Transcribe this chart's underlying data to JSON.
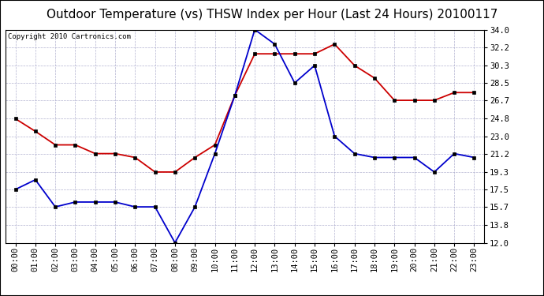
{
  "title": "Outdoor Temperature (vs) THSW Index per Hour (Last 24 Hours) 20100117",
  "copyright": "Copyright 2010 Cartronics.com",
  "hours": [
    "00:00",
    "01:00",
    "02:00",
    "03:00",
    "04:00",
    "05:00",
    "06:00",
    "07:00",
    "08:00",
    "09:00",
    "10:00",
    "11:00",
    "12:00",
    "13:00",
    "14:00",
    "15:00",
    "16:00",
    "17:00",
    "18:00",
    "19:00",
    "20:00",
    "21:00",
    "22:00",
    "23:00"
  ],
  "temp_blue": [
    17.5,
    18.5,
    15.7,
    16.2,
    16.2,
    16.2,
    15.7,
    15.7,
    12.0,
    15.7,
    21.2,
    27.2,
    34.0,
    32.5,
    28.5,
    30.3,
    23.0,
    21.2,
    20.8,
    20.8,
    20.8,
    19.3,
    21.2,
    20.8
  ],
  "thsw_red": [
    24.8,
    23.5,
    22.1,
    22.1,
    21.2,
    21.2,
    20.8,
    19.3,
    19.3,
    20.8,
    22.1,
    27.2,
    31.5,
    31.5,
    31.5,
    31.5,
    32.5,
    30.3,
    29.0,
    26.7,
    26.7,
    26.7,
    27.5,
    27.5
  ],
  "ylim": [
    12.0,
    34.0
  ],
  "yticks": [
    12.0,
    13.8,
    15.7,
    17.5,
    19.3,
    21.2,
    23.0,
    24.8,
    26.7,
    28.5,
    30.3,
    32.2,
    34.0
  ],
  "bg_color": "#ffffff",
  "grid_color": "#aaaacc",
  "blue_color": "#0000cc",
  "red_color": "#cc0000",
  "title_fontsize": 11,
  "copyright_fontsize": 6.5,
  "tick_fontsize": 7.5
}
